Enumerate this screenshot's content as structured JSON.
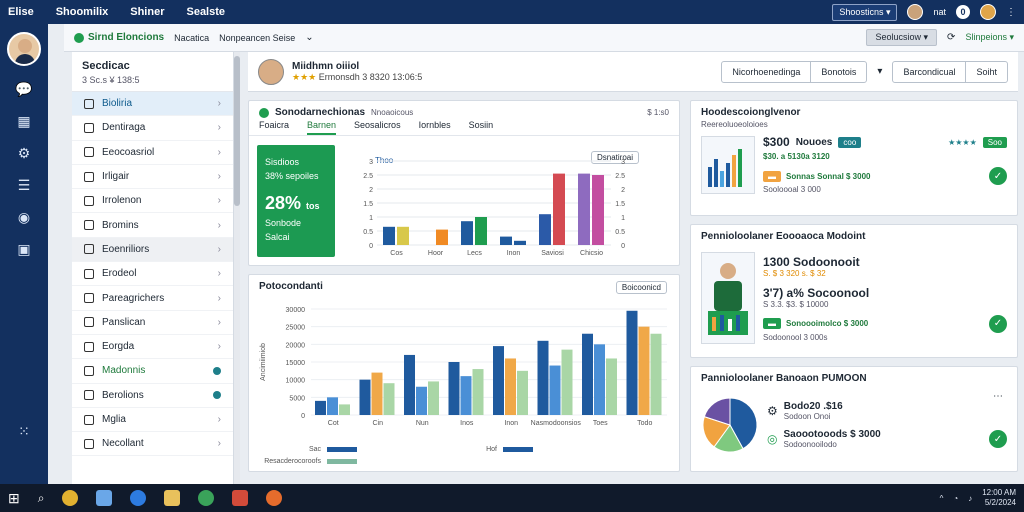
{
  "topbar": {
    "menu": [
      "Elise",
      "Shoomilix",
      "Shiner",
      "Sealste"
    ],
    "dropdown": "Shoosticns",
    "icon_a": "nat",
    "icon_b": "0"
  },
  "subhdr": {
    "brand": "Sirnd Eloncions",
    "crumb1": "Nacatica",
    "crumb2": "Nonpeancen Seise",
    "select": "Seolucsiow",
    "link": "Slinpeions"
  },
  "sidenav": {
    "title": "Secdicac",
    "subtitle": "3 Sc.s  ¥ 138:5",
    "items": [
      {
        "label": "Bioliria",
        "state": "active"
      },
      {
        "label": "Dentiraga"
      },
      {
        "label": "Eeocoasriol"
      },
      {
        "label": "Irligair"
      },
      {
        "label": "Irrolenon"
      },
      {
        "label": "Bromins"
      },
      {
        "label": "Eoenriliors",
        "state": "hl"
      },
      {
        "label": "Erodeol"
      },
      {
        "label": "Pareagrichers"
      },
      {
        "label": "Panslican"
      },
      {
        "label": "Eorgda"
      },
      {
        "label": "Madonnis",
        "state": "green"
      },
      {
        "label": "Berolions"
      },
      {
        "label": "Mglia"
      },
      {
        "label": "Necollant"
      }
    ]
  },
  "profile": {
    "name": "Miidhmn oiiiol",
    "meta": "Ermonsdh 3 8320  13:06:5",
    "btn1": "Nicorhoenedinga",
    "btn2": "Bonotois",
    "btn3": "Barcondicual",
    "btn4": "Soiht"
  },
  "chart1": {
    "title": "Sonodarnechionas",
    "subtitle": "Nnoaoicous",
    "stats": "$ 1:s0",
    "tabs": [
      "Foaicra",
      "Barnen",
      "Seosalicros",
      "Iornbles",
      "Sosiin"
    ],
    "kpi_top": "Sisdioos",
    "kpi_sub": "38% sepoiles",
    "kpi_value": "28%",
    "kpi_unit": "tos",
    "kpi_note": "Sonbode",
    "kpi_note2": "Salcai",
    "legend_label": "Thoo",
    "filter": "Dsnatiroai"
  },
  "chart_data": [
    {
      "type": "bar",
      "categories": [
        "Cos",
        "Hoor",
        "Lecs",
        "Inon",
        "Saviosi",
        "Chicsio"
      ],
      "series": [
        {
          "name": "Thoo",
          "values": [
            0.65,
            0,
            0.85,
            0.3,
            1.1,
            2.55
          ]
        },
        {
          "name": "",
          "values": [
            0.65,
            0.55,
            1.0,
            0.15,
            2.55,
            2.5
          ]
        }
      ],
      "title": "",
      "xlabel": "",
      "ylabel": "",
      "ylim": [
        0,
        3
      ]
    },
    {
      "type": "bar",
      "categories": [
        "Cot",
        "Cin",
        "Nun",
        "Inos",
        "Inon",
        "Nasmodoonsios",
        "Toes",
        "Todo"
      ],
      "series": [
        {
          "name": "Sac",
          "values": [
            4000,
            10000,
            17000,
            15000,
            19500,
            21000,
            23000,
            29500
          ]
        },
        {
          "name": "Hof",
          "values": [
            5000,
            12000,
            8000,
            11000,
            16000,
            14000,
            20000,
            25000
          ]
        },
        {
          "name": "Resacderocoroofs",
          "values": [
            3000,
            9000,
            9500,
            13000,
            12500,
            18500,
            16000,
            23000
          ]
        }
      ],
      "title": "Potocondanti",
      "xlabel": "",
      "ylabel": "Ancimiimiob",
      "ylim": [
        0,
        30000
      ],
      "filter": "Boicoonicd"
    }
  ],
  "right1": {
    "title": "Hoodescoionglvenor",
    "subtitle": "Reereoluoeoloioes",
    "price": "$300",
    "price_label": "Nouoes",
    "tag": "coo",
    "line2": "$30. a 5130a 3120",
    "btn": "Soo",
    "line3": "Sonnas Sonnal  $ 3000",
    "line4": "Sooloooal 3 000"
  },
  "right2": {
    "title": "Pennioloolaner Eoooaoca Modoint",
    "a": "1300 Sodoonooit",
    "a_sub": "S. $ 3 320  s. $ 32",
    "b": "3'7) a% Socoonool",
    "b_sub": "S 3.3. $3. $ 10000",
    "c": "Sonoooimolco  $ 3000",
    "c_sub": "Sodoonool 3 000s"
  },
  "right3": {
    "title": "Pannioloolaner Banoaon PUMOON",
    "a": "Bodo20 .$16",
    "a_sub": "Sodoon Onoi",
    "b": "Saoootooods  $ 3000",
    "b_sub": "Sodoonooilodo"
  },
  "pie": {
    "values": [
      42,
      18,
      20,
      20
    ],
    "colors": [
      "#1f5a9e",
      "#7fc97f",
      "#f1a340",
      "#6a51a3"
    ]
  },
  "taskbar": {
    "time": "12:00 AM",
    "date": "5/2/2024"
  }
}
